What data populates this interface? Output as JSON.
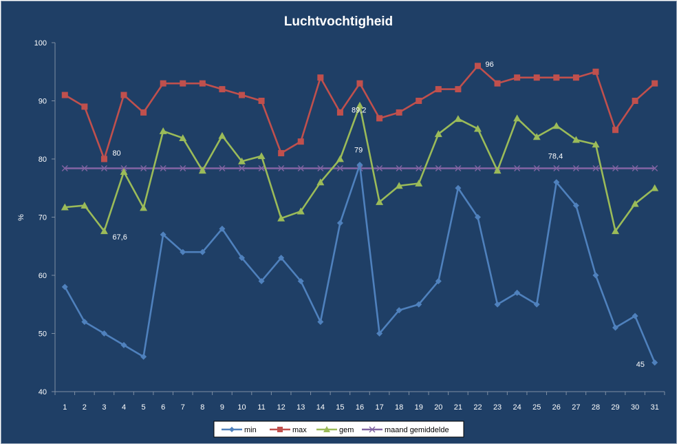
{
  "chart_data": {
    "type": "line",
    "title": "Luchtvochtigheid",
    "ylabel": "%",
    "xlabel": "",
    "ylim": [
      40,
      100
    ],
    "yticks": [
      40,
      50,
      60,
      70,
      80,
      90,
      100
    ],
    "grid": false,
    "legend_position": "bottom",
    "x": [
      "1",
      "2",
      "3",
      "4",
      "5",
      "6",
      "7",
      "8",
      "9",
      "10",
      "11",
      "12",
      "13",
      "14",
      "15",
      "16",
      "17",
      "18",
      "19",
      "20",
      "21",
      "22",
      "23",
      "24",
      "25",
      "26",
      "27",
      "28",
      "29",
      "30",
      "31"
    ],
    "series": [
      {
        "name": "min",
        "color": "#4f81bd",
        "marker": "diamond",
        "values": [
          58,
          52,
          50,
          48,
          46,
          67,
          64,
          64,
          68,
          63,
          59,
          63,
          59,
          52,
          69,
          79,
          50,
          54,
          55,
          59,
          75,
          70,
          55,
          57,
          55,
          76,
          72,
          60,
          51,
          53,
          45
        ]
      },
      {
        "name": "max",
        "color": "#c0504d",
        "marker": "square",
        "values": [
          91,
          89,
          80,
          91,
          88,
          93,
          93,
          93,
          92,
          91,
          90,
          81,
          83,
          94,
          88,
          93,
          87,
          88,
          90,
          92,
          92,
          96,
          93,
          94,
          94,
          94,
          94,
          95,
          85,
          90,
          93
        ]
      },
      {
        "name": "gem",
        "color": "#9bbb59",
        "marker": "triangle",
        "values": [
          71.7,
          72,
          67.6,
          77.8,
          71.6,
          84.8,
          83.6,
          78,
          84,
          79.6,
          80.5,
          69.8,
          71,
          76,
          80,
          89.2,
          72.6,
          75.4,
          75.8,
          84.3,
          86.9,
          85.2,
          78,
          87,
          83.8,
          85.7,
          83.3,
          82.5,
          67.6,
          72.3,
          75
        ]
      },
      {
        "name": "maand gemiddelde",
        "color": "#8064a2",
        "marker": "x",
        "values": [
          78.4,
          78.4,
          78.4,
          78.4,
          78.4,
          78.4,
          78.4,
          78.4,
          78.4,
          78.4,
          78.4,
          78.4,
          78.4,
          78.4,
          78.4,
          78.4,
          78.4,
          78.4,
          78.4,
          78.4,
          78.4,
          78.4,
          78.4,
          78.4,
          78.4,
          78.4,
          78.4,
          78.4,
          78.4,
          78.4,
          78.4
        ]
      }
    ],
    "annotations": [
      {
        "series": "max",
        "day": "3",
        "text": "80"
      },
      {
        "series": "gem",
        "day": "3",
        "text": "67,6"
      },
      {
        "series": "gem",
        "day": "16",
        "text": "89,2"
      },
      {
        "series": "min",
        "day": "16",
        "text": "79"
      },
      {
        "series": "max",
        "day": "22",
        "text": "96"
      },
      {
        "series": "maand gemiddelde",
        "day": "26",
        "text": "78,4"
      },
      {
        "series": "min",
        "day": "31",
        "text": "45"
      }
    ]
  }
}
